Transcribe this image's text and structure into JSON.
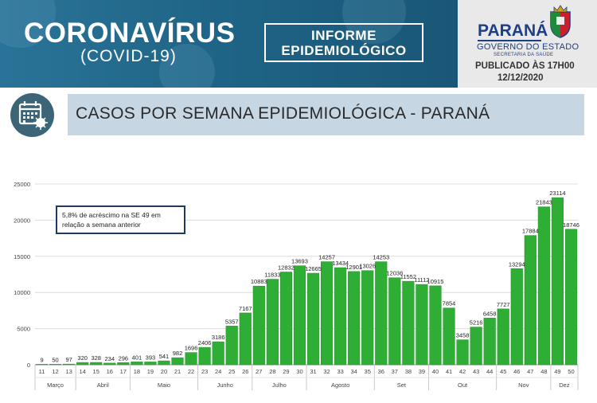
{
  "header": {
    "title": "CORONAVÍRUS",
    "subtitle": "(COVID-19)",
    "informe_line1": "INFORME",
    "informe_line2": "EPIDEMIOLÓGICO",
    "gov_name": "PARANÁ",
    "gov_line": "GOVERNO DO ESTADO",
    "gov_secretaria": "SECRETARIA DA SAÚDE",
    "published": "PUBLICADO ÀS 17H00",
    "date": "12/12/2020"
  },
  "banner": {
    "title": "CASOS POR SEMANA EPIDEMIOLÓGICA - PARANÁ",
    "icon": "calendar-virus-icon"
  },
  "colors": {
    "bar": "#2fae35",
    "bar_edge": "#239228",
    "header_bg": "#1d5f7f",
    "banner_bg": "#c7d6e3"
  },
  "chart_data": {
    "type": "bar",
    "categories": [
      "11",
      "12",
      "13",
      "14",
      "15",
      "16",
      "17",
      "18",
      "19",
      "20",
      "21",
      "22",
      "23",
      "24",
      "25",
      "26",
      "27",
      "28",
      "29",
      "30",
      "31",
      "32",
      "33",
      "34",
      "35",
      "36",
      "37",
      "38",
      "39",
      "40",
      "41",
      "42",
      "43",
      "44",
      "45",
      "46",
      "47",
      "48",
      "49",
      "50"
    ],
    "values": [
      9,
      50,
      97,
      320,
      328,
      234,
      296,
      401,
      393,
      541,
      982,
      1696,
      2406,
      3186,
      5357,
      7167,
      10883,
      11833,
      12832,
      13693,
      12665,
      14257,
      13434,
      12901,
      13026,
      14253,
      12036,
      11552,
      11112,
      10915,
      7854,
      3458,
      5216,
      6458,
      7727,
      13294,
      17884,
      21843,
      23114,
      18746
    ],
    "value_labels": [
      "9",
      "50",
      "97",
      "320",
      "328",
      "234",
      "296",
      "401",
      "393",
      "541",
      "982",
      "1696",
      "2406",
      "3186",
      "5357",
      "7167",
      "10883",
      "11833",
      "12832",
      "13693",
      "12665",
      "14257",
      "13434",
      "12901",
      "13026",
      "14253",
      "12036",
      "11552",
      "11112",
      "10915",
      "7854",
      "3458",
      "5216",
      "6458",
      "7727",
      "13294",
      "17884",
      "21843",
      "23114",
      "18746"
    ],
    "ylim": [
      0,
      25000
    ],
    "yticks": [
      "0",
      "5000",
      "10000",
      "15000",
      "20000",
      "25000"
    ],
    "month_groups": [
      {
        "label": "Março",
        "count": 3
      },
      {
        "label": "Abril",
        "count": 4
      },
      {
        "label": "Maio",
        "count": 5
      },
      {
        "label": "Junho",
        "count": 4
      },
      {
        "label": "Julho",
        "count": 4
      },
      {
        "label": "Agosto",
        "count": 5
      },
      {
        "label": "Set",
        "count": 4
      },
      {
        "label": "Out",
        "count": 5
      },
      {
        "label": "Nov",
        "count": 4
      },
      {
        "label": "Dez",
        "count": 2
      }
    ],
    "annotation": "5,8% de acréscimo na SE 49 em relação a semana anterior",
    "grid": true
  }
}
